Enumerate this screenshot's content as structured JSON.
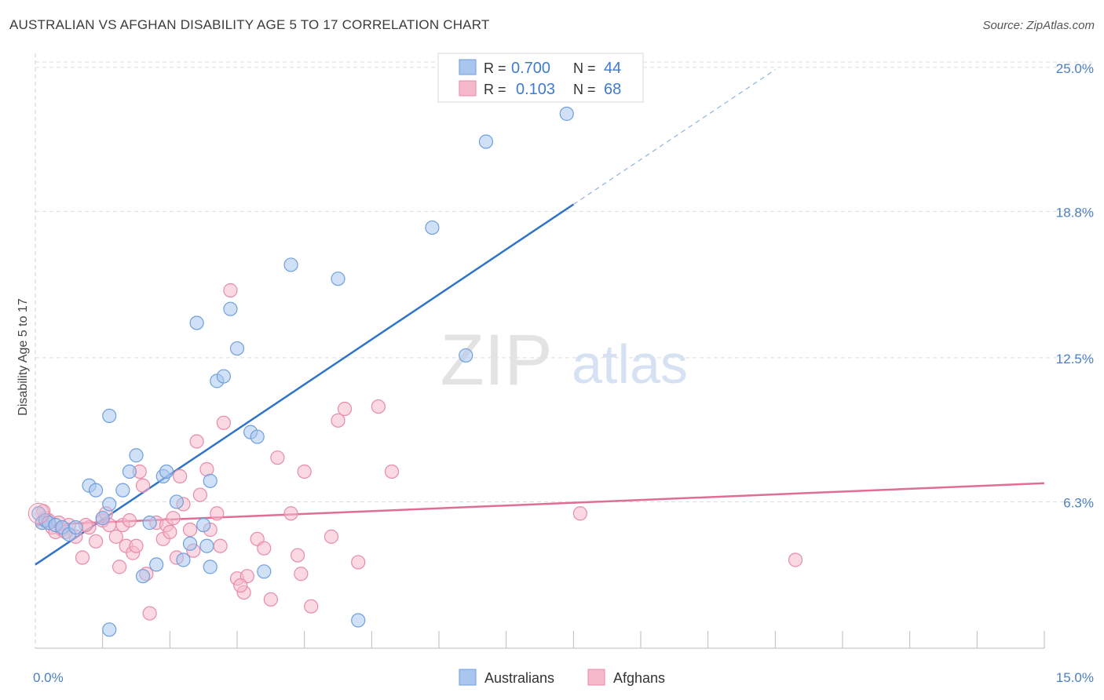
{
  "title": "AUSTRALIAN VS AFGHAN DISABILITY AGE 5 TO 17 CORRELATION CHART",
  "source": "Source: ZipAtlas.com",
  "watermark": {
    "zip": "ZIP",
    "atlas": "atlas"
  },
  "colors": {
    "blue_fill": "#a9c6ee",
    "blue_stroke": "#6f9fdc",
    "blue_line": "#2f74c9",
    "pink_fill": "#f5b9cb",
    "pink_stroke": "#e88aa8",
    "pink_line": "#e06d96",
    "tick_label": "#4a7fc8",
    "grid": "#dddddd"
  },
  "legend": {
    "rows": [
      {
        "r_label": "R =",
        "r_value": "0.700",
        "n_label": "N =",
        "n_value": "44"
      },
      {
        "r_label": "R =",
        "r_value": "0.103",
        "n_label": "N =",
        "n_value": "68"
      }
    ]
  },
  "bottom_legend": [
    "Australians",
    "Afghans"
  ],
  "chart_data": {
    "type": "scatter",
    "title": "AUSTRALIAN VS AFGHAN DISABILITY AGE 5 TO 17 CORRELATION CHART",
    "xlabel": "",
    "ylabel": "Disability Age 5 to 17",
    "xlim": [
      0,
      15
    ],
    "ylim": [
      0,
      25.6
    ],
    "x_tick_labels": [
      {
        "value": 0,
        "label": "0.0%"
      },
      {
        "value": 15,
        "label": "15.0%"
      }
    ],
    "y_ticks": [
      {
        "value": 6.3,
        "label": "6.3%"
      },
      {
        "value": 12.5,
        "label": "12.5%"
      },
      {
        "value": 18.8,
        "label": "18.8%"
      },
      {
        "value": 25.0,
        "label": "25.0%"
      }
    ],
    "grid": true,
    "legend_position": "top-center",
    "series": [
      {
        "name": "Australians",
        "color": "#a9c6ee",
        "r": 0.7,
        "n": 44,
        "trend": {
          "x0": 0,
          "y0": 3.6,
          "x1": 8.0,
          "y1": 19.1,
          "dash_to_x": 11.0,
          "dash_to_y": 24.9
        },
        "points": [
          [
            0.05,
            5.8
          ],
          [
            0.1,
            5.4
          ],
          [
            0.15,
            5.5
          ],
          [
            0.2,
            5.4
          ],
          [
            0.3,
            5.3
          ],
          [
            0.4,
            5.2
          ],
          [
            0.5,
            4.9
          ],
          [
            0.6,
            5.2
          ],
          [
            0.8,
            7.0
          ],
          [
            0.9,
            6.8
          ],
          [
            1.0,
            5.6
          ],
          [
            1.1,
            6.2
          ],
          [
            1.1,
            0.8
          ],
          [
            1.3,
            6.8
          ],
          [
            1.4,
            7.6
          ],
          [
            1.5,
            8.3
          ],
          [
            1.6,
            3.1
          ],
          [
            1.7,
            5.4
          ],
          [
            1.8,
            3.6
          ],
          [
            1.9,
            7.4
          ],
          [
            1.95,
            7.6
          ],
          [
            2.1,
            6.3
          ],
          [
            2.2,
            3.8
          ],
          [
            2.3,
            4.5
          ],
          [
            2.5,
            5.3
          ],
          [
            2.55,
            4.4
          ],
          [
            2.6,
            3.5
          ],
          [
            2.6,
            7.2
          ],
          [
            2.7,
            11.5
          ],
          [
            2.8,
            11.7
          ],
          [
            2.9,
            14.6
          ],
          [
            3.0,
            12.9
          ],
          [
            3.2,
            9.3
          ],
          [
            3.3,
            9.1
          ],
          [
            3.4,
            3.3
          ],
          [
            1.1,
            10.0
          ],
          [
            2.4,
            14.0
          ],
          [
            3.8,
            16.5
          ],
          [
            4.5,
            15.9
          ],
          [
            4.8,
            1.2
          ],
          [
            5.9,
            18.1
          ],
          [
            6.4,
            12.6
          ],
          [
            6.7,
            21.8
          ],
          [
            7.9,
            23.0
          ]
        ]
      },
      {
        "name": "Afghans",
        "color": "#f5b9cb",
        "r": 0.103,
        "n": 68,
        "trend": {
          "x0": 0,
          "y0": 5.3,
          "x1": 15.0,
          "y1": 7.1
        },
        "points": [
          [
            0.1,
            5.4
          ],
          [
            0.15,
            5.6
          ],
          [
            0.2,
            5.5
          ],
          [
            0.25,
            5.2
          ],
          [
            0.3,
            5.0
          ],
          [
            0.35,
            5.4
          ],
          [
            0.4,
            5.1
          ],
          [
            0.5,
            5.3
          ],
          [
            0.6,
            4.8
          ],
          [
            0.7,
            3.9
          ],
          [
            0.8,
            5.2
          ],
          [
            0.9,
            4.6
          ],
          [
            1.0,
            5.5
          ],
          [
            1.05,
            5.8
          ],
          [
            1.1,
            5.3
          ],
          [
            1.2,
            4.8
          ],
          [
            1.3,
            5.3
          ],
          [
            1.35,
            4.4
          ],
          [
            1.4,
            5.5
          ],
          [
            1.45,
            4.1
          ],
          [
            1.5,
            4.4
          ],
          [
            1.55,
            7.6
          ],
          [
            1.6,
            7.0
          ],
          [
            1.65,
            3.2
          ],
          [
            1.7,
            1.5
          ],
          [
            1.8,
            5.4
          ],
          [
            1.9,
            4.7
          ],
          [
            1.95,
            5.3
          ],
          [
            2.0,
            5.0
          ],
          [
            2.1,
            3.9
          ],
          [
            2.15,
            7.4
          ],
          [
            2.2,
            6.2
          ],
          [
            2.3,
            5.1
          ],
          [
            2.35,
            4.2
          ],
          [
            2.4,
            8.9
          ],
          [
            2.45,
            6.6
          ],
          [
            2.55,
            7.7
          ],
          [
            2.6,
            5.1
          ],
          [
            2.7,
            5.8
          ],
          [
            2.75,
            4.4
          ],
          [
            2.8,
            9.7
          ],
          [
            2.9,
            15.4
          ],
          [
            3.0,
            3.0
          ],
          [
            3.1,
            2.4
          ],
          [
            3.15,
            3.1
          ],
          [
            3.3,
            4.7
          ],
          [
            3.4,
            4.3
          ],
          [
            3.5,
            2.1
          ],
          [
            3.6,
            8.2
          ],
          [
            3.8,
            5.8
          ],
          [
            3.9,
            4.0
          ],
          [
            3.95,
            3.2
          ],
          [
            4.0,
            7.6
          ],
          [
            4.1,
            1.8
          ],
          [
            4.4,
            4.8
          ],
          [
            4.5,
            9.8
          ],
          [
            4.6,
            10.3
          ],
          [
            4.8,
            3.7
          ],
          [
            5.1,
            10.4
          ],
          [
            5.3,
            7.6
          ],
          [
            0.12,
            5.9
          ],
          [
            0.45,
            5.0
          ],
          [
            0.75,
            5.3
          ],
          [
            1.25,
            3.5
          ],
          [
            2.05,
            5.6
          ],
          [
            3.05,
            2.7
          ],
          [
            8.1,
            5.8
          ],
          [
            11.3,
            3.8
          ]
        ]
      }
    ]
  }
}
